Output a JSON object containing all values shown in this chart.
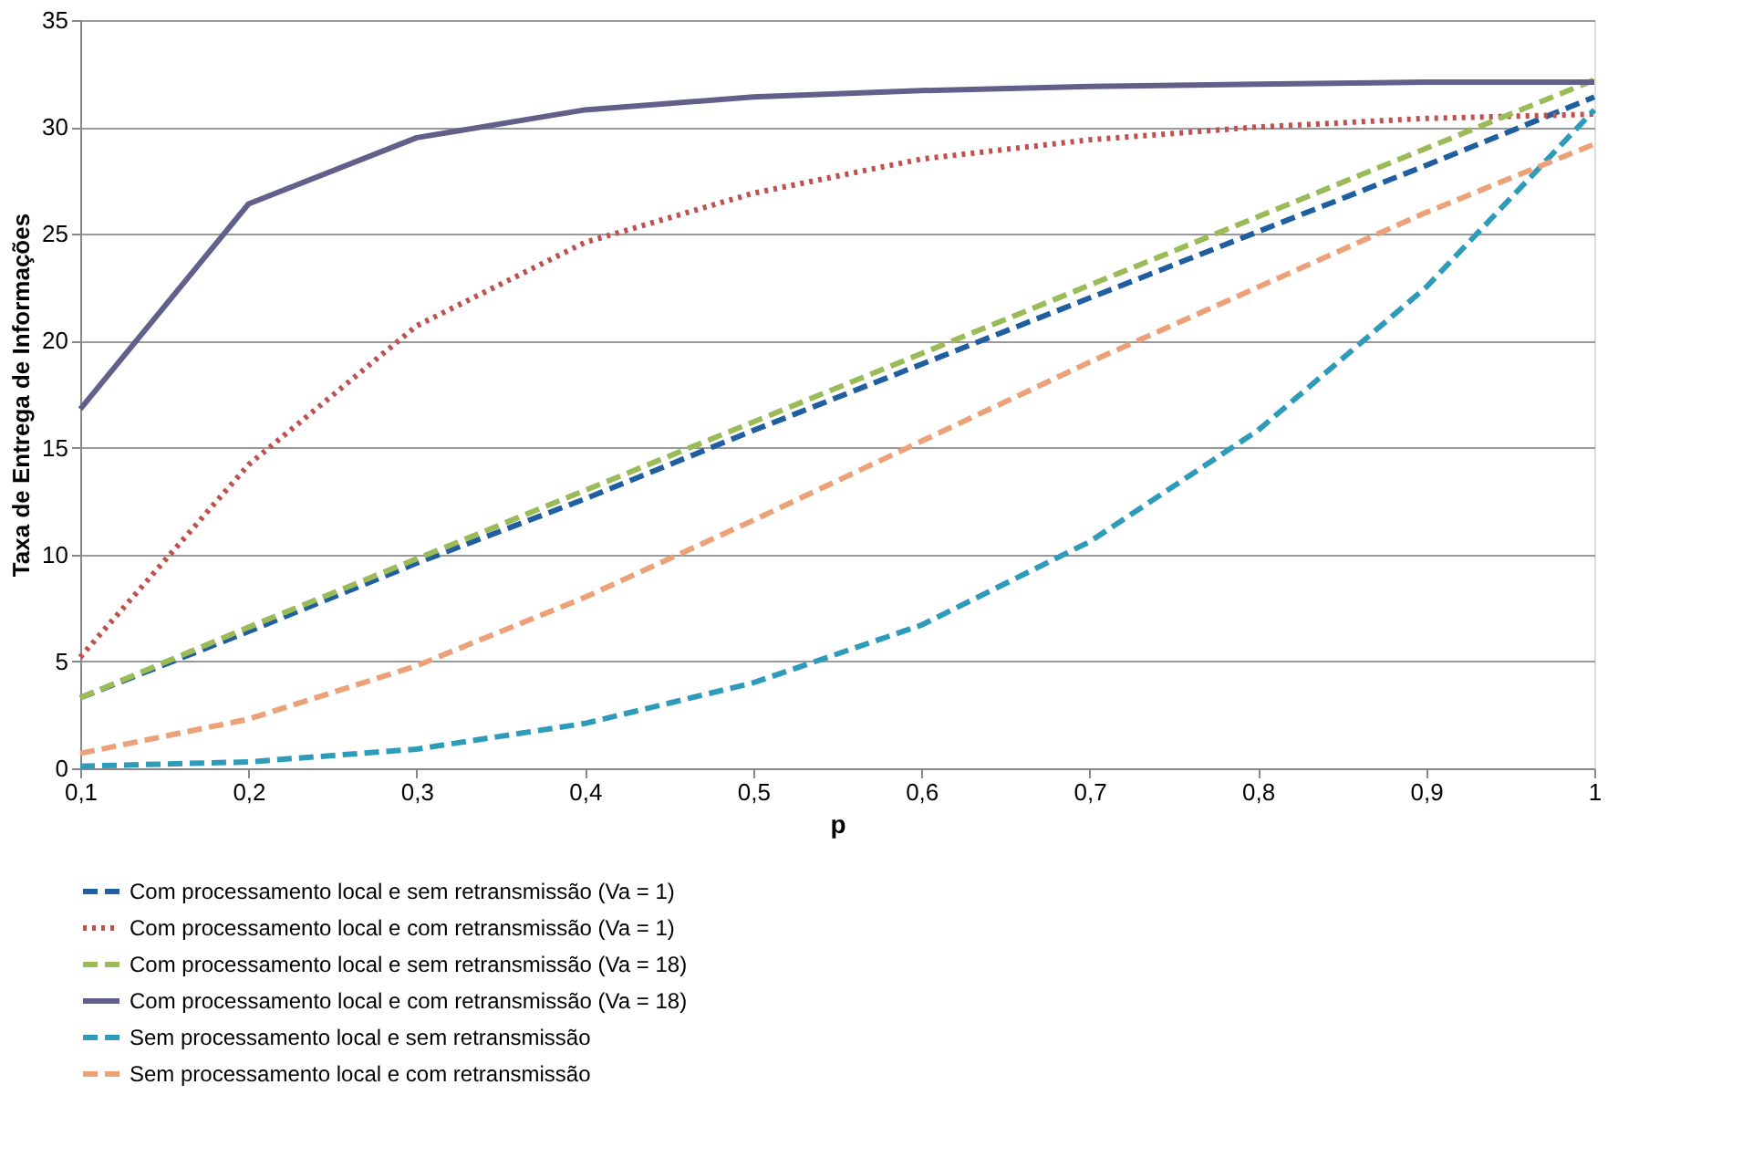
{
  "chart_data": {
    "type": "line",
    "xlabel": "p",
    "ylabel": "Taxa de Entrega de Informações",
    "categories": [
      "0,1",
      "0,2",
      "0,3",
      "0,4",
      "0,5",
      "0,6",
      "0,7",
      "0,8",
      "0,9",
      "1"
    ],
    "ylim": [
      0,
      35
    ],
    "yticks": [
      0,
      5,
      10,
      15,
      20,
      25,
      30,
      35
    ],
    "grid": "y",
    "legend": "bottom",
    "marker": "none",
    "series": [
      {
        "name": "Com processamento local e sem retransmissão (Va = 1)",
        "color": "#1f5f9f",
        "line_style": "dashed",
        "values": [
          3.3,
          6.4,
          9.6,
          12.6,
          15.8,
          18.9,
          22.0,
          25.1,
          28.2,
          31.4
        ]
      },
      {
        "name": "Com processamento local e com retransmissão (Va = 1)",
        "color": "#c0504d",
        "line_style": "dotted",
        "values": [
          5.2,
          14.2,
          20.7,
          24.6,
          26.9,
          28.5,
          29.4,
          30.0,
          30.4,
          30.6
        ]
      },
      {
        "name": "Com processamento local e sem retransmissão (Va = 18)",
        "color": "#9bbb59",
        "line_style": "dashed",
        "values": [
          3.3,
          6.6,
          9.8,
          13.0,
          16.2,
          19.4,
          22.6,
          25.8,
          29.0,
          32.2
        ]
      },
      {
        "name": "Com processamento local e com retransmissão (Va = 18)",
        "color": "#60608a",
        "line_style": "solid",
        "values": [
          16.8,
          26.4,
          29.5,
          30.8,
          31.4,
          31.7,
          31.9,
          32.0,
          32.1,
          32.1
        ]
      },
      {
        "name": "Sem processamento local e sem retransmissão",
        "color": "#2e9bbb",
        "line_style": "dashed",
        "values": [
          0.1,
          0.3,
          0.9,
          2.1,
          4.0,
          6.7,
          10.6,
          15.8,
          22.5,
          30.8
        ]
      },
      {
        "name": "Sem processamento local e com retransmissão",
        "color": "#eca178",
        "line_style": "dashed",
        "values": [
          0.7,
          2.3,
          4.8,
          8.0,
          11.6,
          15.3,
          19.0,
          22.5,
          26.0,
          29.2
        ]
      }
    ]
  }
}
